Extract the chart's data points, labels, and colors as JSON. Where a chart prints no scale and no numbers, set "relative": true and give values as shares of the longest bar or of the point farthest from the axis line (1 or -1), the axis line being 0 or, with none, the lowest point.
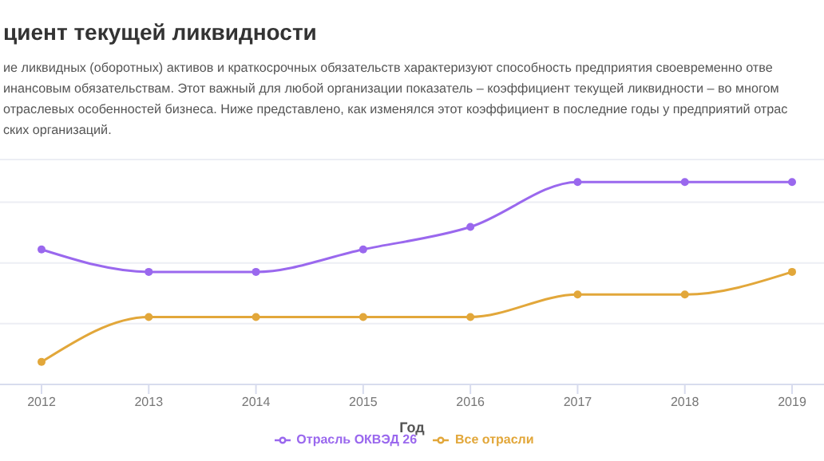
{
  "chart_data": {
    "type": "line",
    "title": "циент текущей ликвидности",
    "subtitle": "ие ликвидных (оборотных) активов и краткосрочных обязательств характеризуют способность предприятия своевременно отве\nинансовым обязательствам. Этот важный для любой организации показатель – коэффициент текущей ликвидности – во многом\nотраслевых особенностей бизнеса. Ниже представлено, как изменялся этот коэффициент в последние годы у предприятий отрас\nских организаций.",
    "xlabel": "Год",
    "categories": [
      "2012",
      "2013",
      "2014",
      "2015",
      "2016",
      "2017",
      "2018",
      "2019"
    ],
    "relative": true,
    "series": [
      {
        "name": "Отрасль ОКВЭД 26",
        "color": "#9a68ee",
        "values": [
          0.667,
          0.556,
          0.556,
          0.667,
          0.778,
          1,
          1,
          1
        ]
      },
      {
        "name": "Все отрасли",
        "color": "#e2a73a",
        "values": [
          0.111,
          0.333,
          0.333,
          0.333,
          0.333,
          0.444,
          0.444,
          0.556
        ]
      }
    ],
    "grid": "y",
    "legend": "bottom",
    "marker": "circle",
    "line_style": "solid"
  }
}
